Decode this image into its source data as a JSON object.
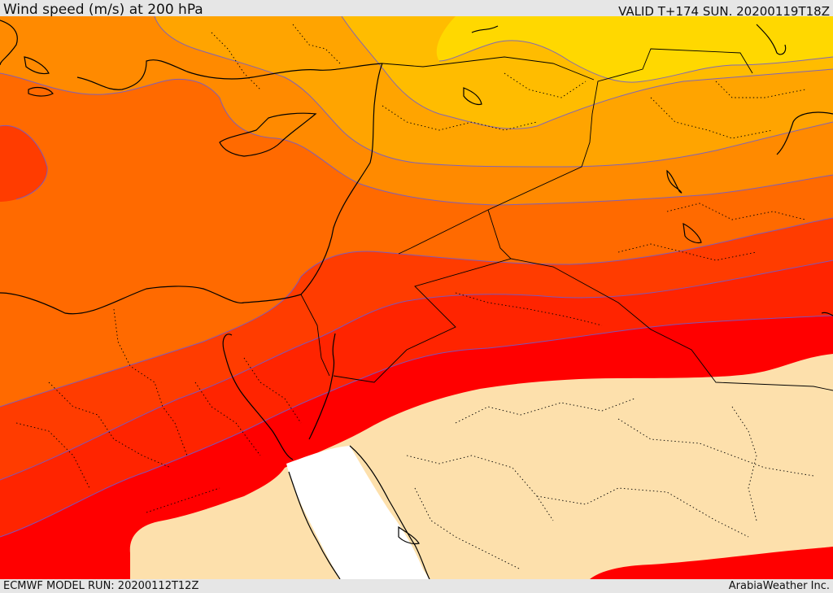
{
  "header": {
    "title": "Wind speed (m/s) at 200 hPa",
    "valid": "VALID T+174 SUN. 20200119T18Z"
  },
  "footer": {
    "model_run": "ECMWF MODEL RUN: 20200112T12Z",
    "credit": "ArabiaWeather Inc."
  },
  "colors": {
    "band_yellow": "#ffd800",
    "band_light_orange": "#ffbc00",
    "band_orange_1": "#ffa400",
    "band_orange_2": "#ff8a00",
    "band_orange_3": "#ff6a00",
    "band_red_orange": "#ff3c00",
    "band_red_2": "#ff2400",
    "band_red": "#ff0000",
    "land_below_threshold": "#fde0ac",
    "sea": "#ffffff",
    "contour": "#6b5bd6"
  }
}
